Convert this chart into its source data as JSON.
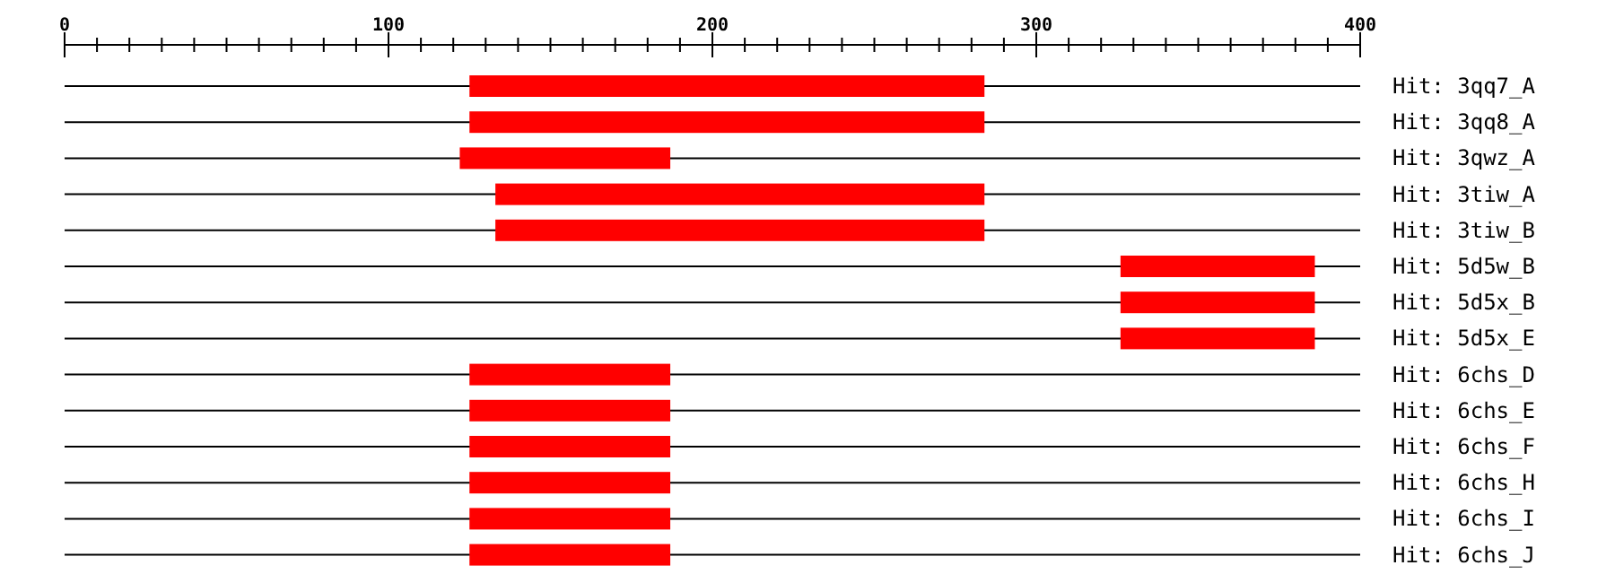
{
  "chart_data": {
    "type": "bar",
    "orientation": "horizontal",
    "grid": "y",
    "categories": [
      "Hit: 3qq7_A",
      "Hit: 3qq8_A",
      "Hit: 3qwz_A",
      "Hit: 3tiw_A",
      "Hit: 3tiw_B",
      "Hit: 5d5w_B",
      "Hit: 5d5x_B",
      "Hit: 5d5x_E",
      "Hit: 6chs_D",
      "Hit: 6chs_E",
      "Hit: 6chs_F",
      "Hit: 6chs_H",
      "Hit: 6chs_I",
      "Hit: 6chs_J"
    ],
    "base": [
      125,
      125,
      122,
      133,
      133,
      326,
      326,
      326,
      125,
      125,
      125,
      125,
      125,
      125
    ],
    "values": [
      159,
      159,
      65,
      151,
      151,
      60,
      60,
      60,
      62,
      62,
      62,
      62,
      62,
      62
    ],
    "color": "#ff0000",
    "xlim": [
      0,
      400
    ],
    "xticks": [
      0,
      {
        "value": 10,
        "label": null
      },
      {
        "value": 20,
        "label": null
      },
      {
        "value": 30,
        "label": null
      },
      {
        "value": 40,
        "label": null
      },
      {
        "value": 50,
        "label": null
      },
      {
        "value": 60,
        "label": null
      },
      {
        "value": 70,
        "label": null
      },
      {
        "value": 80,
        "label": null
      },
      {
        "value": 90,
        "label": null
      },
      100,
      {
        "value": 110,
        "label": null
      },
      {
        "value": 120,
        "label": null
      },
      {
        "value": 130,
        "label": null
      },
      {
        "value": 140,
        "label": null
      },
      {
        "value": 150,
        "label": null
      },
      {
        "value": 160,
        "label": null
      },
      {
        "value": 170,
        "label": null
      },
      {
        "value": 180,
        "label": null
      },
      {
        "value": 190,
        "label": null
      },
      200,
      {
        "value": 210,
        "label": null
      },
      {
        "value": 220,
        "label": null
      },
      {
        "value": 230,
        "label": null
      },
      {
        "value": 240,
        "label": null
      },
      {
        "value": 250,
        "label": null
      },
      {
        "value": 260,
        "label": null
      },
      {
        "value": 270,
        "label": null
      },
      {
        "value": 280,
        "label": null
      },
      {
        "value": 290,
        "label": null
      },
      300,
      {
        "value": 310,
        "label": null
      },
      {
        "value": 320,
        "label": null
      },
      {
        "value": 330,
        "label": null
      },
      {
        "value": 340,
        "label": null
      },
      {
        "value": 350,
        "label": null
      },
      {
        "value": 360,
        "label": null
      },
      {
        "value": 370,
        "label": null
      },
      {
        "value": 380,
        "label": null
      },
      {
        "value": 390,
        "label": null
      },
      400
    ]
  }
}
